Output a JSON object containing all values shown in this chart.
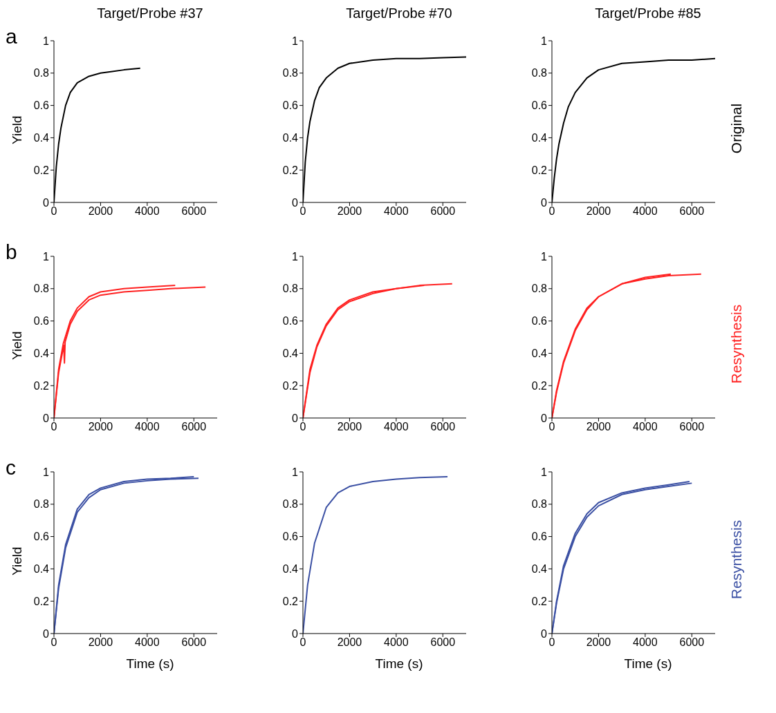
{
  "chart_data": [
    {
      "type": "line",
      "title": "Target/Probe #37",
      "ylabel": "Yield",
      "annotations": [
        "a"
      ],
      "xlim": [
        0,
        7000
      ],
      "xticks": [
        0,
        2000,
        4000,
        6000
      ],
      "ylim": [
        0,
        1
      ],
      "yticks": [
        0,
        0.2,
        0.4,
        0.6,
        0.8,
        1
      ],
      "line_style": "solid",
      "series": [
        {
          "color": "#000000",
          "x": [
            0,
            100,
            200,
            300,
            500,
            700,
            1000,
            1500,
            2000,
            2500,
            3000,
            3700
          ],
          "values": [
            0,
            0.22,
            0.36,
            0.46,
            0.6,
            0.68,
            0.74,
            0.78,
            0.8,
            0.81,
            0.82,
            0.83
          ]
        }
      ]
    },
    {
      "type": "line",
      "title": "Target/Probe #70",
      "xlim": [
        0,
        7000
      ],
      "xticks": [
        0,
        2000,
        4000,
        6000
      ],
      "ylim": [
        0,
        1
      ],
      "yticks": [
        0,
        0.2,
        0.4,
        0.6,
        0.8,
        1
      ],
      "line_style": "solid",
      "series": [
        {
          "color": "#000000",
          "x": [
            0,
            100,
            200,
            300,
            500,
            700,
            1000,
            1500,
            2000,
            3000,
            4000,
            5000,
            6000,
            7000
          ],
          "values": [
            0,
            0.25,
            0.4,
            0.5,
            0.63,
            0.71,
            0.77,
            0.83,
            0.86,
            0.88,
            0.89,
            0.89,
            0.895,
            0.9
          ]
        }
      ]
    },
    {
      "type": "line",
      "title": "Target/Probe #85",
      "annotations": [
        "Original"
      ],
      "xlim": [
        0,
        7000
      ],
      "xticks": [
        0,
        2000,
        4000,
        6000
      ],
      "ylim": [
        0,
        1
      ],
      "yticks": [
        0,
        0.2,
        0.4,
        0.6,
        0.8,
        1
      ],
      "line_style": "solid",
      "series": [
        {
          "color": "#000000",
          "x": [
            0,
            100,
            200,
            300,
            500,
            700,
            1000,
            1500,
            2000,
            3000,
            4000,
            5000,
            6000,
            7000
          ],
          "values": [
            0,
            0.15,
            0.27,
            0.36,
            0.49,
            0.59,
            0.68,
            0.77,
            0.82,
            0.86,
            0.87,
            0.88,
            0.88,
            0.89
          ]
        }
      ]
    },
    {
      "type": "line",
      "ylabel": "Yield",
      "annotations": [
        "b"
      ],
      "xlim": [
        0,
        7000
      ],
      "xticks": [
        0,
        2000,
        4000,
        6000
      ],
      "ylim": [
        0,
        1
      ],
      "yticks": [
        0,
        0.2,
        0.4,
        0.6,
        0.8,
        1
      ],
      "line_style": "solid",
      "series": [
        {
          "color": "#ff2020",
          "x": [
            0,
            200,
            400,
            700,
            1000,
            1500,
            2000,
            3000,
            4000,
            5200
          ],
          "values": [
            0,
            0.3,
            0.46,
            0.6,
            0.68,
            0.75,
            0.78,
            0.8,
            0.81,
            0.82
          ]
        },
        {
          "color": "#ff2020",
          "x": [
            0,
            200,
            420,
            450,
            480,
            700,
            1000,
            1500,
            2000,
            3000,
            4000,
            5000,
            6500
          ],
          "values": [
            0,
            0.28,
            0.45,
            0.34,
            0.47,
            0.58,
            0.66,
            0.73,
            0.76,
            0.78,
            0.79,
            0.8,
            0.81
          ]
        }
      ]
    },
    {
      "type": "line",
      "xlim": [
        0,
        7000
      ],
      "xticks": [
        0,
        2000,
        4000,
        6000
      ],
      "ylim": [
        0,
        1
      ],
      "yticks": [
        0,
        0.2,
        0.4,
        0.6,
        0.8,
        1
      ],
      "line_style": "solid",
      "series": [
        {
          "color": "#ff2020",
          "x": [
            0,
            300,
            600,
            1000,
            1500,
            2000,
            3000,
            4000,
            5200
          ],
          "values": [
            0,
            0.3,
            0.45,
            0.58,
            0.68,
            0.73,
            0.78,
            0.8,
            0.82
          ]
        },
        {
          "color": "#ff2020",
          "x": [
            0,
            300,
            600,
            1000,
            1500,
            2000,
            3000,
            4000,
            5000,
            6400
          ],
          "values": [
            0,
            0.28,
            0.44,
            0.57,
            0.67,
            0.72,
            0.77,
            0.8,
            0.82,
            0.83
          ]
        }
      ]
    },
    {
      "type": "line",
      "annotations": [
        "Resynthesis"
      ],
      "xlim": [
        0,
        7000
      ],
      "xticks": [
        0,
        2000,
        4000,
        6000
      ],
      "ylim": [
        0,
        1
      ],
      "yticks": [
        0,
        0.2,
        0.4,
        0.6,
        0.8,
        1
      ],
      "line_style": "solid",
      "series": [
        {
          "color": "#ff2020",
          "x": [
            0,
            200,
            500,
            1000,
            1500,
            2000,
            3000,
            4000,
            5100
          ],
          "values": [
            0,
            0.17,
            0.35,
            0.55,
            0.68,
            0.75,
            0.83,
            0.87,
            0.89
          ]
        },
        {
          "color": "#ff2020",
          "x": [
            0,
            200,
            500,
            1000,
            1500,
            2000,
            3000,
            4000,
            5000,
            6400
          ],
          "values": [
            0,
            0.16,
            0.34,
            0.54,
            0.67,
            0.75,
            0.83,
            0.86,
            0.88,
            0.89
          ]
        }
      ]
    },
    {
      "type": "line",
      "ylabel": "Yield",
      "xlabel": "Time (s)",
      "annotations": [
        "c"
      ],
      "xlim": [
        0,
        7000
      ],
      "xticks": [
        0,
        2000,
        4000,
        6000
      ],
      "ylim": [
        0,
        1
      ],
      "yticks": [
        0,
        0.2,
        0.4,
        0.6,
        0.8,
        1
      ],
      "line_style": "solid",
      "series": [
        {
          "color": "#3a4fa3",
          "x": [
            0,
            200,
            500,
            1000,
            1500,
            2000,
            3000,
            4000,
            5000,
            6000
          ],
          "values": [
            0,
            0.3,
            0.55,
            0.77,
            0.86,
            0.9,
            0.94,
            0.955,
            0.96,
            0.97
          ]
        },
        {
          "color": "#3a4fa3",
          "x": [
            0,
            200,
            500,
            1000,
            1500,
            2000,
            3000,
            4000,
            5000,
            6200
          ],
          "values": [
            0,
            0.28,
            0.53,
            0.75,
            0.84,
            0.89,
            0.93,
            0.945,
            0.955,
            0.96
          ]
        }
      ]
    },
    {
      "type": "line",
      "xlabel": "Time (s)",
      "xlim": [
        0,
        7000
      ],
      "xticks": [
        0,
        2000,
        4000,
        6000
      ],
      "ylim": [
        0,
        1
      ],
      "yticks": [
        0,
        0.2,
        0.4,
        0.6,
        0.8,
        1
      ],
      "line_style": "solid",
      "series": [
        {
          "color": "#3a4fa3",
          "x": [
            0,
            200,
            500,
            1000,
            1500,
            2000,
            3000,
            4000,
            5000,
            6200
          ],
          "values": [
            0,
            0.3,
            0.56,
            0.78,
            0.87,
            0.91,
            0.94,
            0.955,
            0.965,
            0.97
          ]
        }
      ]
    },
    {
      "type": "line",
      "xlabel": "Time (s)",
      "annotations": [
        "Resynthesis"
      ],
      "xlim": [
        0,
        7000
      ],
      "xticks": [
        0,
        2000,
        4000,
        6000
      ],
      "ylim": [
        0,
        1
      ],
      "yticks": [
        0,
        0.2,
        0.4,
        0.6,
        0.8,
        1
      ],
      "line_style": "solid",
      "series": [
        {
          "color": "#3a4fa3",
          "x": [
            0,
            200,
            500,
            1000,
            1500,
            2000,
            3000,
            4000,
            5000,
            5900
          ],
          "values": [
            0,
            0.2,
            0.42,
            0.62,
            0.74,
            0.81,
            0.87,
            0.9,
            0.92,
            0.94
          ]
        },
        {
          "color": "#3a4fa3",
          "x": [
            0,
            200,
            500,
            1000,
            1500,
            2000,
            3000,
            4000,
            5000,
            6000
          ],
          "values": [
            0,
            0.19,
            0.4,
            0.6,
            0.72,
            0.79,
            0.86,
            0.89,
            0.91,
            0.93
          ]
        }
      ]
    }
  ]
}
